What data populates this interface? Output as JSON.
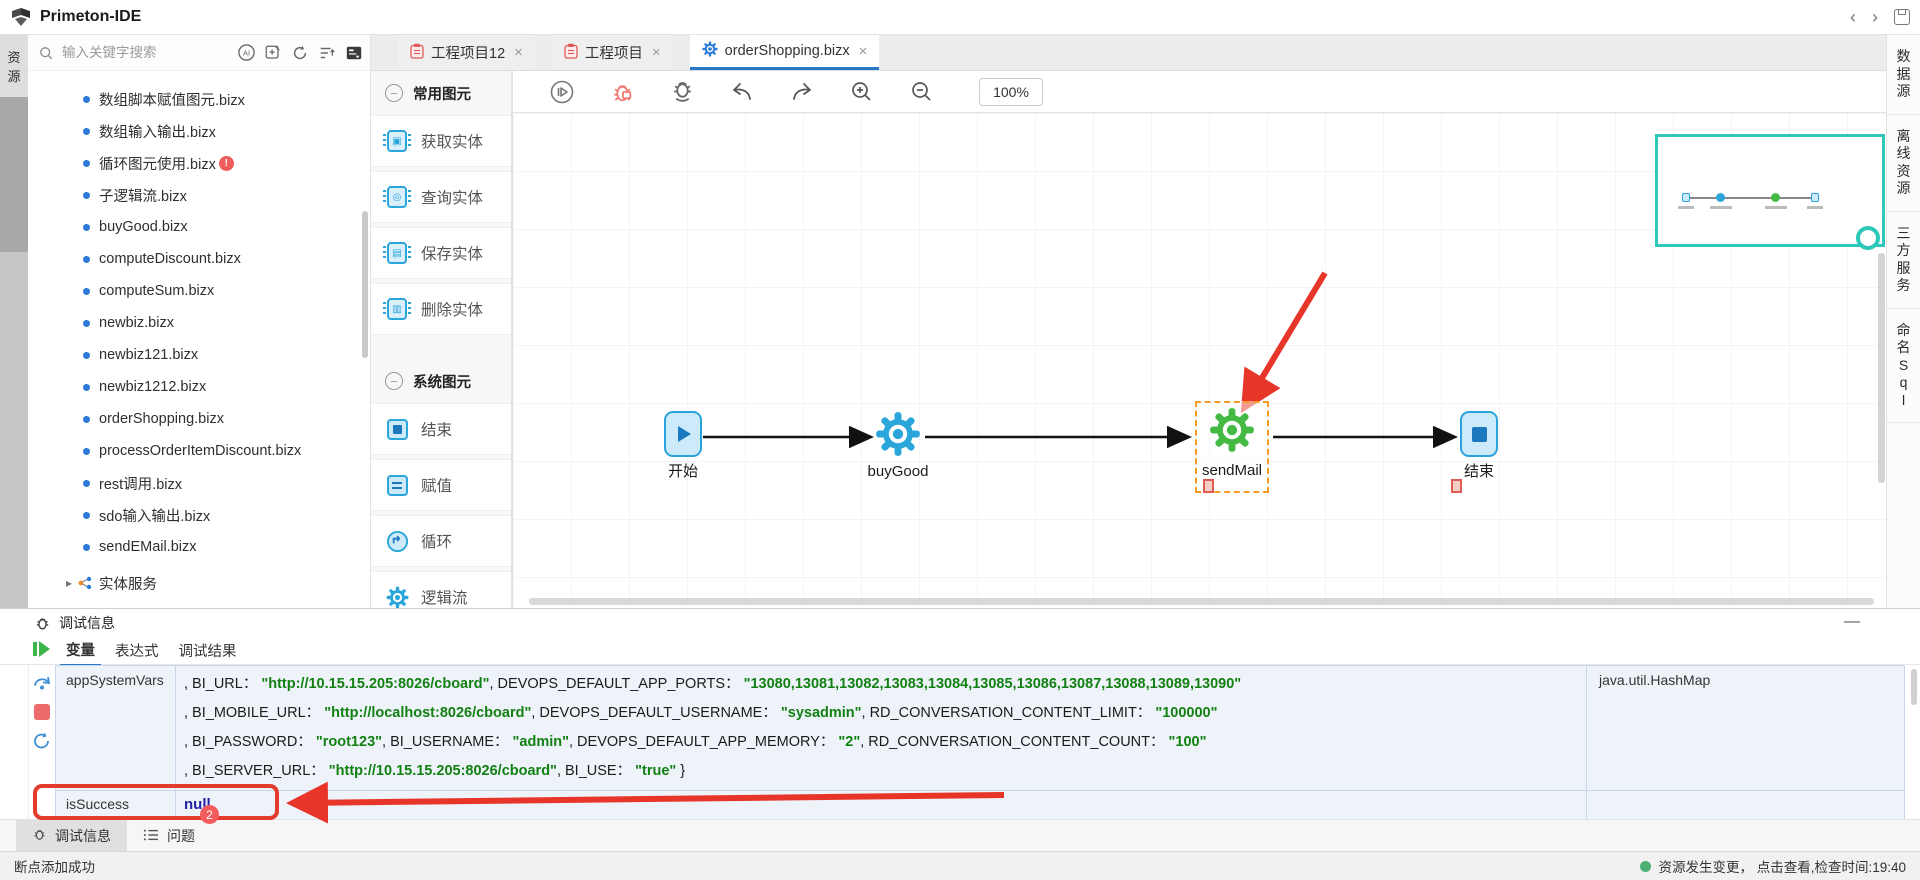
{
  "glyphs": {
    "close": "×",
    "back": "‹",
    "forward": "›",
    "minimize": "—",
    "collapse": "−",
    "folder_arrow": "▸"
  },
  "app": {
    "title": "Primeton-IDE"
  },
  "left_rail": {
    "active_tab": "资源"
  },
  "right_rail": {
    "tabs": [
      {
        "label": "数据源"
      },
      {
        "label": "离线资源"
      },
      {
        "label": "三方服务"
      },
      {
        "label": "命名Sql"
      }
    ]
  },
  "explorer": {
    "search_placeholder": "输入关键字搜索",
    "files": [
      {
        "name": "数组脚本赋值图元.bizx"
      },
      {
        "name": "数组输入输出.bizx"
      },
      {
        "name": "循环图元使用.bizx",
        "badge": "!"
      },
      {
        "name": "子逻辑流.bizx"
      },
      {
        "name": "buyGood.bizx"
      },
      {
        "name": "computeDiscount.bizx"
      },
      {
        "name": "computeSum.bizx"
      },
      {
        "name": "newbiz.bizx"
      },
      {
        "name": "newbiz121.bizx"
      },
      {
        "name": "newbiz1212.bizx"
      },
      {
        "name": "orderShopping.bizx"
      },
      {
        "name": "processOrderItemDiscount.bizx"
      },
      {
        "name": "rest调用.bizx"
      },
      {
        "name": "sdo输入输出.bizx"
      },
      {
        "name": "sendEMail.bizx"
      }
    ],
    "folder": {
      "name": "实体服务"
    }
  },
  "palette": {
    "sections": [
      {
        "title": "常用图元",
        "items": [
          {
            "label": "获取实体",
            "icon": "entity-get-icon",
            "kind": "chip",
            "glyph": "▣"
          },
          {
            "label": "查询实体",
            "icon": "entity-query-icon",
            "kind": "chip",
            "glyph": "◎"
          },
          {
            "label": "保存实体",
            "icon": "entity-save-icon",
            "kind": "chip",
            "glyph": "▤"
          },
          {
            "label": "删除实体",
            "icon": "entity-delete-icon",
            "kind": "chip",
            "glyph": "▥"
          }
        ]
      },
      {
        "title": "系统图元",
        "items": [
          {
            "label": "结束",
            "icon": "end-icon",
            "kind": "end"
          },
          {
            "label": "赋值",
            "icon": "assign-icon",
            "kind": "assign"
          },
          {
            "label": "循环",
            "icon": "loop-icon",
            "kind": "loop"
          },
          {
            "label": "逻辑流",
            "icon": "logicflow-icon",
            "kind": "gear"
          }
        ]
      }
    ]
  },
  "editor_tabs": [
    {
      "label": "工程项目12",
      "icon": "project-icon",
      "active": false
    },
    {
      "label": "工程项目",
      "icon": "project-icon",
      "active": false
    },
    {
      "label": "orderShopping.bizx",
      "icon": "gear-icon",
      "active": true
    }
  ],
  "canvas_toolbar": {
    "zoom_level": "100%"
  },
  "flow": {
    "nodes": [
      {
        "label": "开始",
        "kind": "start"
      },
      {
        "label": "buyGood",
        "kind": "gear-blue"
      },
      {
        "label": "sendMail",
        "kind": "gear-green",
        "selected": true,
        "breakpoint": true
      },
      {
        "label": "结束",
        "kind": "end",
        "breakpoint": true
      }
    ]
  },
  "debug_panel": {
    "title": "调试信息",
    "tabs": [
      {
        "label": "变量",
        "active": true
      },
      {
        "label": "表达式",
        "active": false
      },
      {
        "label": "调试结果",
        "active": false
      }
    ],
    "variables": [
      {
        "name": "appSystemVars",
        "type": "java.util.HashMap",
        "value_lines": [
          [
            {
              "t": "k",
              "s": ",  BI_URL： "
            },
            {
              "t": "v",
              "s": "\"http://10.15.15.205:8026/cboard\""
            },
            {
              "t": "k",
              "s": ",  DEVOPS_DEFAULT_APP_PORTS： "
            },
            {
              "t": "v",
              "s": "\"13080,13081,13082,13083,13084,13085,13086,13087,13088,13089,13090\""
            }
          ],
          [
            {
              "t": "k",
              "s": ",  BI_MOBILE_URL： "
            },
            {
              "t": "v",
              "s": "\"http://localhost:8026/cboard\""
            },
            {
              "t": "k",
              "s": ",  DEVOPS_DEFAULT_USERNAME： "
            },
            {
              "t": "v",
              "s": "\"sysadmin\""
            },
            {
              "t": "k",
              "s": ",  RD_CONVERSATION_CONTENT_LIMIT： "
            },
            {
              "t": "v",
              "s": "\"100000\""
            }
          ],
          [
            {
              "t": "k",
              "s": ",  BI_PASSWORD： "
            },
            {
              "t": "v",
              "s": "\"root123\""
            },
            {
              "t": "k",
              "s": ",  BI_USERNAME： "
            },
            {
              "t": "v",
              "s": "\"admin\""
            },
            {
              "t": "k",
              "s": ",  DEVOPS_DEFAULT_APP_MEMORY： "
            },
            {
              "t": "v",
              "s": "\"2\""
            },
            {
              "t": "k",
              "s": ",  RD_CONVERSATION_CONTENT_COUNT： "
            },
            {
              "t": "v",
              "s": "\"100\""
            }
          ],
          [
            {
              "t": "k",
              "s": ",  BI_SERVER_URL： "
            },
            {
              "t": "v",
              "s": "\"http://10.15.15.205:8026/cboard\""
            },
            {
              "t": "k",
              "s": ",  BI_USE： "
            },
            {
              "t": "v",
              "s": "\"true\""
            },
            {
              "t": "k",
              "s": " }"
            }
          ]
        ]
      },
      {
        "name": "isSuccess",
        "value": "null",
        "type": ""
      }
    ],
    "bottom_tabs": [
      {
        "label": "调试信息",
        "icon": "bug-icon",
        "active": true
      },
      {
        "label": "问题",
        "icon": "problems-icon",
        "active": false,
        "badge": "2"
      }
    ]
  },
  "status_bar": {
    "message": "断点添加成功",
    "right_message": "资源发生变更， 点击查看,检查时间:19:40"
  }
}
